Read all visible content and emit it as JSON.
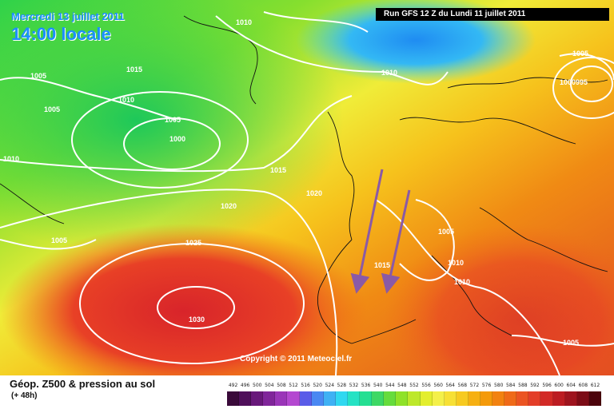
{
  "header": {
    "date": "Mercredi 13 juillet 2011",
    "time": "14:00 locale",
    "run": "Run GFS 12 Z du Lundi 11 juillet 2011"
  },
  "footer": {
    "title": "Géop. Z500 & pression au sol",
    "subtitle": "(+ 48h)",
    "copyright": "Copyright © 2011 Meteociel.fr"
  },
  "isobar_labels": [
    "1010",
    "1005",
    "1015",
    "1005",
    "1010",
    "1005",
    "1000",
    "1010",
    "1015",
    "1020",
    "1005",
    "1025",
    "1030",
    "1010",
    "1005",
    "1000995",
    "1020",
    "1005",
    "1010",
    "1010",
    "1015",
    "1005"
  ],
  "legend": {
    "values": [
      "492",
      "496",
      "500",
      "504",
      "508",
      "512",
      "516",
      "520",
      "524",
      "528",
      "532",
      "536",
      "540",
      "544",
      "548",
      "552",
      "556",
      "560",
      "564",
      "568",
      "572",
      "576",
      "580",
      "584",
      "588",
      "592",
      "596",
      "600",
      "604",
      "608",
      "612"
    ],
    "colors": [
      "#3a0a3a",
      "#4f0f5a",
      "#68187a",
      "#80259a",
      "#9a35b8",
      "#b448d0",
      "#5a5ce8",
      "#4a88f2",
      "#3fb1f4",
      "#30d8f0",
      "#25e2c4",
      "#25df92",
      "#3ed865",
      "#66dc3c",
      "#8fe228",
      "#bde82a",
      "#e3ee2e",
      "#f4f04a",
      "#f7e035",
      "#f7ca20",
      "#f6b012",
      "#f49a0a",
      "#f28210",
      "#ef6a18",
      "#eb5422",
      "#e33e28",
      "#d22a26",
      "#bc1c22",
      "#9e141e",
      "#7c0c16",
      "#4c040c"
    ]
  },
  "colors": {
    "title_blue": "#1c8fff",
    "contour_white": "#ffffff",
    "arrow_purple": "#8a5aa6"
  }
}
